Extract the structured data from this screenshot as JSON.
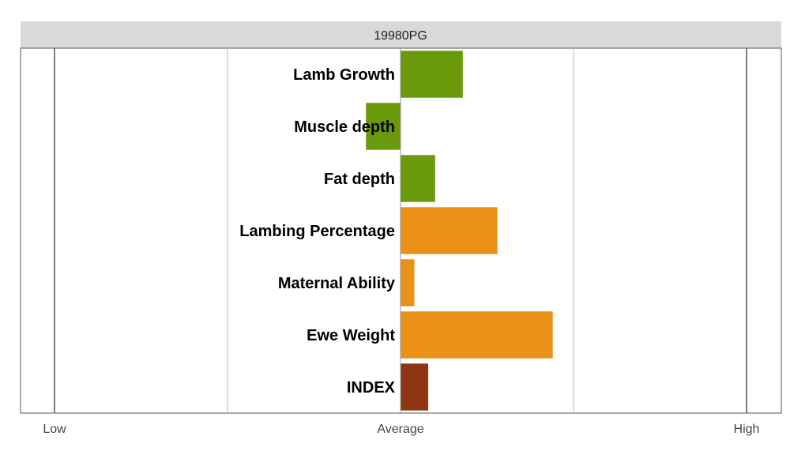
{
  "chart_data": {
    "type": "bar",
    "orientation": "horizontal",
    "title": "19980PG",
    "categories": [
      "Lamb Growth",
      "Muscle depth",
      "Fat depth",
      "Lambing Percentage",
      "Maternal Ability",
      "Ewe Weight",
      "INDEX"
    ],
    "values": [
      0.18,
      -0.1,
      0.1,
      0.28,
      0.04,
      0.44,
      0.08
    ],
    "colors": [
      "#6a9a0b",
      "#6a9a0b",
      "#6a9a0b",
      "#ea9118",
      "#ea9118",
      "#ea9118",
      "#8e3611"
    ],
    "xlim": [
      -1,
      1
    ],
    "xticks": [
      {
        "value": -1,
        "label": "Low"
      },
      {
        "value": 0,
        "label": "Average"
      },
      {
        "value": 1,
        "label": "High"
      }
    ],
    "grid": true,
    "legend": "none"
  }
}
